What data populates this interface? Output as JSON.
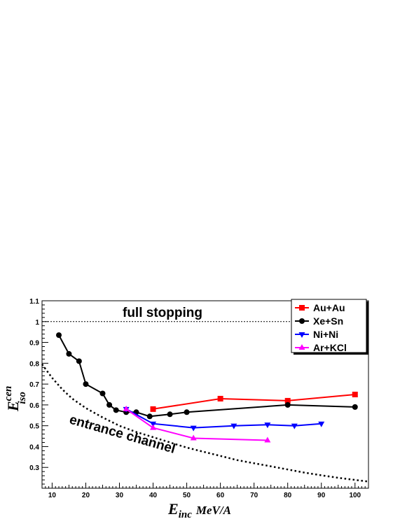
{
  "chart_data": {
    "type": "line",
    "x_axis": {
      "label_main": "E",
      "label_sub": "inc",
      "label_unit": "MeV/A",
      "range": [
        7,
        104
      ],
      "ticks": [
        10,
        20,
        30,
        40,
        50,
        60,
        70,
        80,
        90,
        100
      ]
    },
    "y_axis": {
      "label_main": "E",
      "label_sub": "iso",
      "label_sup": "cen",
      "range": [
        0.2,
        1.1
      ],
      "ticks": [
        0.3,
        0.4,
        0.5,
        0.6,
        0.7,
        0.8,
        0.9,
        1,
        1.1
      ]
    },
    "legend_position": "top-right",
    "series": [
      {
        "name": "Au+Au",
        "color": "#ff0000",
        "marker": "square",
        "x": [
          40,
          60,
          80,
          100
        ],
        "y": [
          0.58,
          0.63,
          0.62,
          0.65
        ]
      },
      {
        "name": "Xe+Sn",
        "color": "#000000",
        "marker": "circle",
        "x": [
          12,
          15,
          18,
          20,
          25,
          27,
          29,
          32,
          35,
          39,
          45,
          50,
          80,
          100
        ],
        "y": [
          0.935,
          0.845,
          0.81,
          0.7,
          0.655,
          0.6,
          0.575,
          0.565,
          0.565,
          0.545,
          0.555,
          0.565,
          0.6,
          0.59
        ]
      },
      {
        "name": "Ni+Ni",
        "color": "#0000ff",
        "marker": "triangle-down",
        "x": [
          32,
          40,
          52,
          64,
          74,
          82,
          90
        ],
        "y": [
          0.58,
          0.51,
          0.49,
          0.5,
          0.505,
          0.5,
          0.51
        ]
      },
      {
        "name": "Ar+KCl",
        "color": "#ff00ff",
        "marker": "triangle-up",
        "x": [
          32,
          40,
          52,
          74
        ],
        "y": [
          0.58,
          0.49,
          0.44,
          0.43
        ]
      }
    ],
    "reference_lines": [
      {
        "label": "full stopping",
        "style": "dotted",
        "y": 1.0
      },
      {
        "label": "entrance channel",
        "style": "dotted",
        "x": [
          7,
          10,
          13,
          16,
          20,
          25,
          30,
          35,
          40,
          45,
          50,
          55,
          60,
          65,
          70,
          75,
          80,
          85,
          90,
          95,
          100,
          104
        ],
        "y": [
          0.795,
          0.73,
          0.675,
          0.63,
          0.585,
          0.54,
          0.5,
          0.47,
          0.445,
          0.42,
          0.395,
          0.375,
          0.355,
          0.335,
          0.32,
          0.305,
          0.29,
          0.275,
          0.262,
          0.25,
          0.24,
          0.232
        ]
      }
    ]
  }
}
